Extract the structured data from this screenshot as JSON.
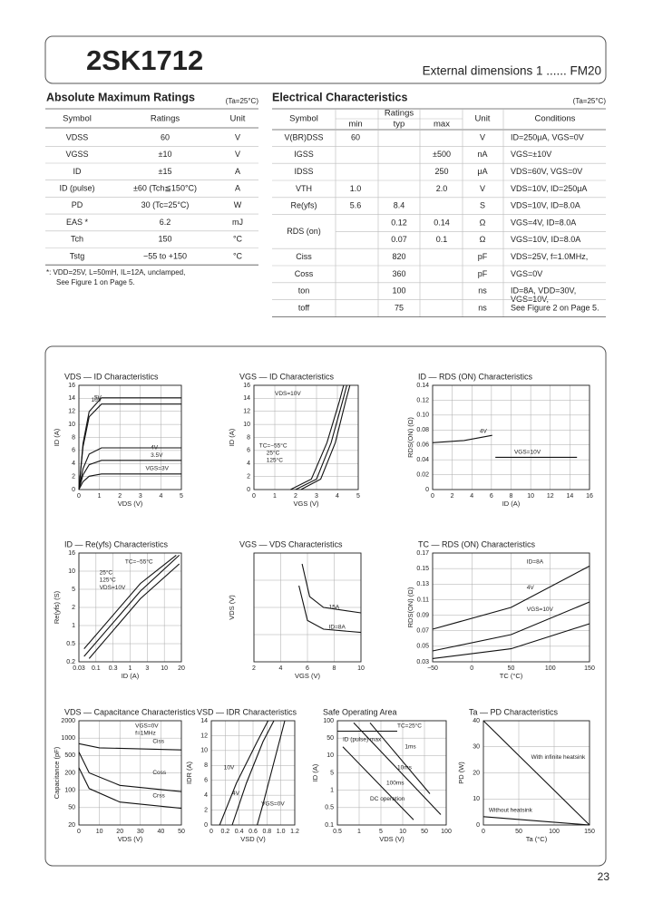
{
  "header": {
    "part": "2SK1712",
    "dims": "External dimensions 1 ...... FM20"
  },
  "abs": {
    "title": "Absolute Maximum Ratings",
    "cond": "(Ta=25°C)",
    "columns": [
      "Symbol",
      "Ratings",
      "Unit"
    ],
    "rows": [
      [
        "VDSS",
        "60",
        "V"
      ],
      [
        "VGSS",
        "±10",
        "V"
      ],
      [
        "ID",
        "±15",
        "A"
      ],
      [
        "ID (pulse)",
        "±60 (Tch≦150°C)",
        "A"
      ],
      [
        "PD",
        "30 (Tc=25°C)",
        "W"
      ],
      [
        "EAS *",
        "6.2",
        "mJ"
      ],
      [
        "Tch",
        "150",
        "°C"
      ],
      [
        "Tstg",
        "−55 to +150",
        "°C"
      ]
    ],
    "note": [
      "*: VDD=25V, L=50mH, IL=12A, unclamped,",
      "See Figure 1 on Page 5."
    ]
  },
  "elec": {
    "title": "Electrical Characteristics",
    "cond": "(Ta=25°C)",
    "columns": [
      "Symbol",
      "Ratings",
      "Unit",
      "Conditions"
    ],
    "subcolumns": [
      "min",
      "typ",
      "max"
    ],
    "rows": [
      {
        "symbol": "V(BR)DSS",
        "min": "60",
        "typ": null,
        "max": null,
        "unit": "V",
        "conditions": [
          "ID=250μA, VGS=0V"
        ]
      },
      {
        "symbol": "IGSS",
        "min": null,
        "typ": null,
        "max": "±500",
        "unit": "nA",
        "conditions": [
          "VGS=±10V"
        ]
      },
      {
        "symbol": "IDSS",
        "min": null,
        "typ": null,
        "max": "250",
        "unit": "μA",
        "conditions": [
          "VDS=60V, VGS=0V"
        ]
      },
      {
        "symbol": "VTH",
        "min": "1.0",
        "typ": null,
        "max": "2.0",
        "unit": "V",
        "conditions": [
          "VDS=10V, ID=250μA"
        ]
      },
      {
        "symbol": "Re(yfs)",
        "min": "5.6",
        "typ": "8.4",
        "max": null,
        "unit": "S",
        "conditions": [
          "VDS=10V, ID=8.0A"
        ]
      },
      {
        "symbol": "RDS (on)",
        "min": null,
        "typ": "0.12",
        "max": "0.14",
        "unit": "Ω",
        "conditions": [
          "VGS=4V, ID=8.0A"
        ]
      },
      {
        "symbol": null,
        "min": null,
        "typ": "0.07",
        "max": "0.1",
        "unit": "Ω",
        "conditions": [
          "VGS=10V, ID=8.0A"
        ]
      },
      {
        "symbol": "Ciss",
        "min": null,
        "typ": "820",
        "max": null,
        "unit": "pF",
        "conditions": [
          "VDS=25V, f=1.0MHz,"
        ]
      },
      {
        "symbol": "Coss",
        "min": null,
        "typ": "360",
        "max": null,
        "unit": "pF",
        "conditions": [
          "VGS=0V"
        ]
      },
      {
        "symbol": "ton",
        "min": null,
        "typ": "100",
        "max": null,
        "unit": "ns",
        "conditions": [
          "ID=8A, VDD=30V,",
          "VGS=10V,"
        ]
      },
      {
        "symbol": "toff",
        "min": null,
        "typ": "75",
        "max": null,
        "unit": "ns",
        "conditions": [
          "See Figure 2 on Page 5."
        ]
      }
    ]
  },
  "graphs": [
    {
      "title": "VDS — ID  Characteristics",
      "xticks": [
        "0",
        "1",
        "2",
        "3",
        "4",
        "5"
      ],
      "yticks": [
        "0",
        "2",
        "4",
        "6",
        "8",
        "10",
        "12",
        "14",
        "16"
      ],
      "xlabel": "VDS (V)",
      "ylabel": "ID (A)",
      "labels": [
        "5V",
        "10V",
        "4V",
        "3.5V",
        "VGS=3V"
      ]
    },
    {
      "title": "VGS — ID  Characteristics",
      "xticks": [
        "0",
        "1",
        "2",
        "3",
        "4",
        "5"
      ],
      "yticks": [
        "0",
        "2",
        "4",
        "6",
        "8",
        "10",
        "12",
        "14",
        "16"
      ],
      "xlabel": "VGS (V)",
      "ylabel": "ID (A)",
      "labels": [
        "VDS=10V",
        "TC=−55°C",
        "25°C",
        "125°C"
      ]
    },
    {
      "title": "ID — RDS (ON)  Characteristics",
      "xticks": [
        "0",
        "2",
        "4",
        "6",
        "8",
        "10",
        "12",
        "14",
        "16"
      ],
      "yticks": [
        "0",
        "0.02",
        "0.04",
        "0.06",
        "0.08",
        "0.10",
        "0.12",
        "0.14"
      ],
      "xlabel": "ID (A)",
      "ylabel": "RDS(ON) (Ω)",
      "labels": [
        "4V",
        "VGS=10V"
      ]
    },
    {
      "title": "ID — Re(yfs)  Characteristics",
      "xticks": [
        "0.03",
        "0.1",
        "0.3",
        "1",
        "3",
        "10",
        "20"
      ],
      "yticks": [
        "0.2",
        "0.5",
        "1",
        "2",
        "5",
        "10",
        "16"
      ],
      "xlabel": "ID (A)",
      "ylabel": "Re(yfs) (S)",
      "labels": [
        "TC=−55°C",
        "25°C",
        "125°C",
        "VDS=10V"
      ]
    },
    {
      "title": "VGS — VDS  Characteristics",
      "xticks": [
        "2",
        "4",
        "6",
        "8",
        "10"
      ],
      "yticks": [],
      "xlabel": "VGS (V)",
      "ylabel": "VDS (V)",
      "labels": [
        "15A",
        "ID=8A"
      ]
    },
    {
      "title": "TC — RDS (ON)  Characteristics",
      "xticks": [
        "−50",
        "0",
        "50",
        "100",
        "150"
      ],
      "yticks": [
        "0.03",
        "0.05",
        "0.07",
        "0.09",
        "0.11",
        "0.13",
        "0.15",
        "0.17"
      ],
      "xlabel": "TC (°C)",
      "ylabel": "RDS(ON) (Ω)",
      "labels": [
        "ID=8A",
        "4V",
        "VGS=10V"
      ]
    },
    {
      "title": "VDS — Capacitance  Characteristics",
      "xticks": [
        "0",
        "10",
        "20",
        "30",
        "40",
        "50"
      ],
      "yticks": [
        "20",
        "50",
        "100",
        "200",
        "500",
        "1000",
        "2000"
      ],
      "xlabel": "VDS (V)",
      "ylabel": "Capacitance (pF)",
      "labels": [
        "VGS=0V",
        "f=1MHz",
        "Ciss",
        "Coss",
        "Crss"
      ]
    },
    {
      "title": "VSD — IDR  Characteristics",
      "xticks": [
        "0",
        "0.2",
        "0.4",
        "0.6",
        "0.8",
        "1.0",
        "1.2"
      ],
      "yticks": [
        "0",
        "2",
        "4",
        "6",
        "8",
        "10",
        "12",
        "14"
      ],
      "xlabel": "VSD (V)",
      "ylabel": "IDR (A)",
      "labels": [
        "10V",
        "4V",
        "VGS=0V"
      ]
    },
    {
      "title": "Safe Operating Area",
      "xticks": [
        "0.5",
        "1",
        "5",
        "10",
        "50",
        "100"
      ],
      "yticks": [
        "0.1",
        "0.5",
        "1",
        "5",
        "10",
        "50",
        "100"
      ],
      "xlabel": "VDS (V)",
      "ylabel": "ID (A)",
      "labels": [
        "ID (pulse) max",
        "TC=25°C",
        "1ms",
        "10ms",
        "100ms",
        "DC operation"
      ]
    },
    {
      "title": "Ta — PD  Characteristics",
      "xticks": [
        "0",
        "50",
        "100",
        "150"
      ],
      "yticks": [
        "0",
        "10",
        "20",
        "30",
        "40"
      ],
      "xlabel": "Ta (°C)",
      "ylabel": "PD (W)",
      "labels": [
        "With infinite heatsink",
        "Without heatsink"
      ]
    }
  ],
  "page": "23"
}
